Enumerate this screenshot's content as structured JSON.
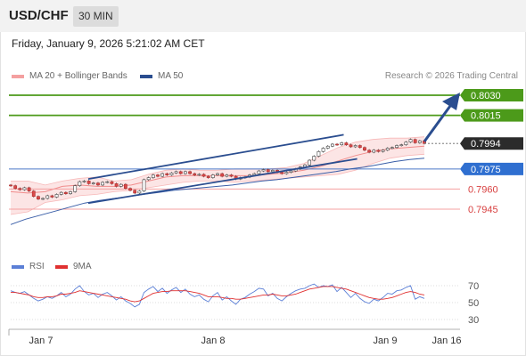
{
  "header": {
    "symbol": "USD/CHF",
    "timeframe": "30 MIN"
  },
  "datetime": "Friday, January 9, 2026 5:21:02 AM CET",
  "legend": {
    "ma20": {
      "label": "MA 20 + Bollinger Bands",
      "color": "#f4a0a0"
    },
    "ma50": {
      "label": "MA 50",
      "color": "#2a4d8f"
    }
  },
  "copyright": "Research © 2026 Trading Central",
  "rsi_legend": {
    "rsi": {
      "label": "RSI",
      "color": "#5b7fd6"
    },
    "ma9": {
      "label": "9MA",
      "color": "#e03030"
    }
  },
  "chart_data": {
    "type": "candlestick",
    "price_range": [
      0.793,
      0.804
    ],
    "current_price": "0.7994",
    "levels": [
      {
        "value": 0.803,
        "label": "0.8030",
        "kind": "target"
      },
      {
        "value": 0.8015,
        "label": "0.8015",
        "kind": "target"
      },
      {
        "value": 0.7975,
        "label": "0.7975",
        "kind": "pivot"
      },
      {
        "value": 0.796,
        "label": "0.7960",
        "kind": "support"
      },
      {
        "value": 0.7945,
        "label": "0.7945",
        "kind": "support"
      }
    ],
    "channel": {
      "upper": [
        [
          0,
          0.79675
        ],
        [
          0.76,
          0.80005
        ]
      ],
      "lower": [
        [
          0,
          0.79495
        ],
        [
          0.8,
          0.79825
        ]
      ]
    },
    "closes": [
      0.79625,
      0.79605,
      0.79595,
      0.7961,
      0.79585,
      0.79545,
      0.79525,
      0.7953,
      0.7955,
      0.7954,
      0.7956,
      0.79575,
      0.79565,
      0.7958,
      0.79625,
      0.79655,
      0.7966,
      0.7964,
      0.79645,
      0.7963,
      0.7965,
      0.79655,
      0.7964,
      0.7962,
      0.79635,
      0.79605,
      0.7959,
      0.7957,
      0.79585,
      0.7967,
      0.79685,
      0.79705,
      0.79695,
      0.79715,
      0.79705,
      0.7972,
      0.7973,
      0.79715,
      0.7973,
      0.79715,
      0.79705,
      0.7971,
      0.79695,
      0.79685,
      0.79705,
      0.79715,
      0.79695,
      0.79705,
      0.79695,
      0.79675,
      0.79685,
      0.7969,
      0.79705,
      0.79715,
      0.79735,
      0.79745,
      0.7973,
      0.7974,
      0.79725,
      0.79715,
      0.79725,
      0.79735,
      0.7975,
      0.79765,
      0.7978,
      0.79815,
      0.79845,
      0.7988,
      0.79905,
      0.7992,
      0.79935,
      0.7993,
      0.79945,
      0.7993,
      0.79915,
      0.79925,
      0.7991,
      0.7989,
      0.79875,
      0.7989,
      0.7988,
      0.7989,
      0.79905,
      0.7991,
      0.79925,
      0.7993,
      0.7995,
      0.7997,
      0.79945,
      0.7996,
      0.7994
    ],
    "ma50": [
      0.79335,
      0.79375,
      0.79405,
      0.79435,
      0.79465,
      0.79495,
      0.79515,
      0.7953,
      0.79545,
      0.7956,
      0.79575,
      0.7959,
      0.796,
      0.7961,
      0.7962,
      0.7963,
      0.79645,
      0.7966,
      0.7967,
      0.79685,
      0.797,
      0.79715,
      0.7973,
      0.7975,
      0.79765,
      0.79785,
      0.79805,
      0.7982,
      0.7983
    ],
    "ma20": [
      0.7958,
      0.7957,
      0.7958,
      0.7962,
      0.7963,
      0.7962,
      0.7962,
      0.7963,
      0.7966,
      0.7969,
      0.797,
      0.797,
      0.797,
      0.797,
      0.797,
      0.7971,
      0.7972,
      0.7974,
      0.7977,
      0.7981,
      0.7985,
      0.7988,
      0.799,
      0.7991,
      0.7992
    ],
    "bb_upper": [
      0.7966,
      0.7966,
      0.7963,
      0.7966,
      0.7968,
      0.7969,
      0.7966,
      0.7967,
      0.7971,
      0.7974,
      0.7975,
      0.7974,
      0.7974,
      0.7975,
      0.7975,
      0.7975,
      0.7976,
      0.7979,
      0.7985,
      0.7991,
      0.7995,
      0.7997,
      0.7998,
      0.7998,
      0.7999
    ],
    "bb_lower": [
      0.7941,
      0.7943,
      0.795,
      0.7952,
      0.7955,
      0.7956,
      0.7958,
      0.7959,
      0.7961,
      0.7963,
      0.7965,
      0.7966,
      0.7966,
      0.7965,
      0.7966,
      0.7967,
      0.7968,
      0.7969,
      0.797,
      0.7971,
      0.7974,
      0.7979,
      0.7983,
      0.7985,
      0.7986
    ],
    "rsi": {
      "ticks": [
        "70",
        "50",
        "30"
      ],
      "range": [
        20,
        80
      ],
      "values": [
        64,
        62,
        61,
        63,
        59,
        55,
        52,
        54,
        57,
        55,
        58,
        62,
        57,
        60,
        66,
        70,
        63,
        59,
        61,
        56,
        60,
        62,
        58,
        53,
        57,
        52,
        49,
        45,
        48,
        62,
        66,
        69,
        63,
        67,
        61,
        65,
        68,
        62,
        66,
        60,
        57,
        59,
        54,
        51,
        58,
        62,
        53,
        57,
        52,
        48,
        54,
        56,
        60,
        63,
        67,
        66,
        58,
        61,
        55,
        52,
        57,
        61,
        64,
        66,
        67,
        70,
        72,
        68,
        70,
        69,
        71,
        63,
        68,
        62,
        56,
        61,
        55,
        51,
        49,
        54,
        52,
        56,
        61,
        60,
        64,
        65,
        68,
        70,
        54,
        57,
        55
      ],
      "ma9": [
        62,
        62,
        61,
        60,
        59,
        57,
        56,
        56,
        57,
        57,
        58,
        60,
        60,
        61,
        62,
        64,
        63,
        62,
        61,
        60,
        59,
        58,
        57,
        56,
        55,
        54,
        52,
        51,
        52,
        55,
        58,
        61,
        62,
        63,
        63,
        64,
        64,
        64,
        64,
        63,
        62,
        61,
        59,
        57,
        57,
        57,
        56,
        55,
        55,
        54,
        54,
        55,
        56,
        57,
        58,
        59,
        59,
        60,
        59,
        58,
        58,
        59,
        60,
        62,
        64,
        66,
        67,
        68,
        69,
        69,
        69,
        68,
        67,
        66,
        64,
        62,
        60,
        58,
        56,
        55,
        54,
        54,
        55,
        56,
        58,
        60,
        62,
        63,
        62,
        60,
        59
      ]
    },
    "x_labels": [
      "Jan 7",
      "Jan 8",
      "Jan 9",
      "Jan 16"
    ]
  }
}
